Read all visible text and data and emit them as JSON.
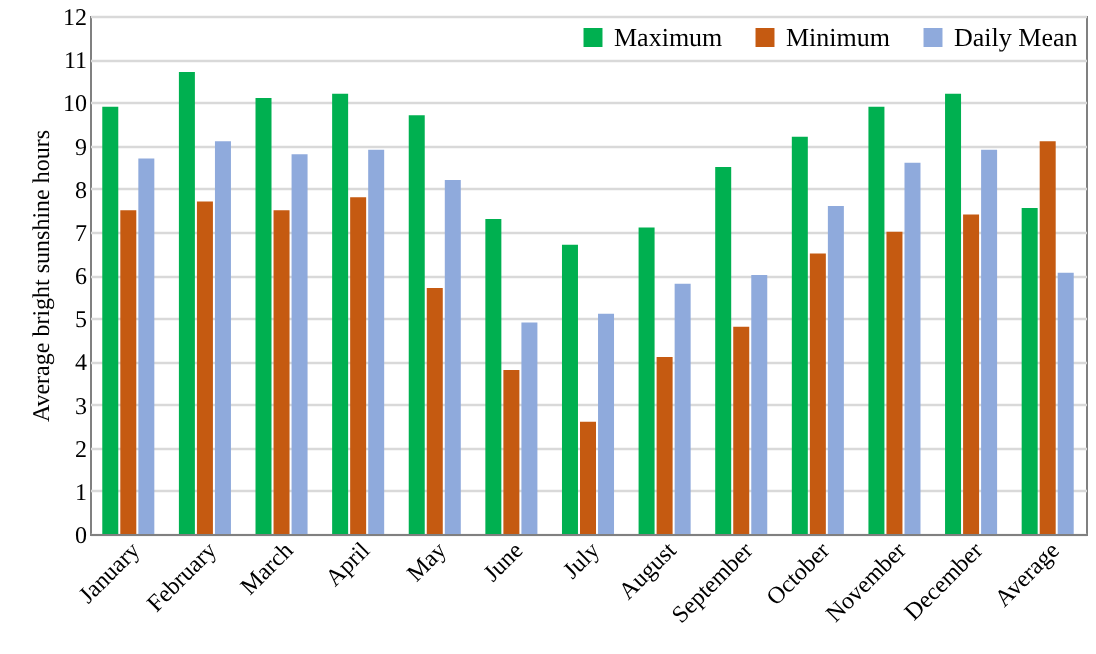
{
  "chart_data": {
    "type": "bar",
    "ylabel": "Average bright sunshine hours",
    "categories": [
      "January",
      "February",
      "March",
      "April",
      "May",
      "June",
      "July",
      "August",
      "September",
      "October",
      "November",
      "December",
      "Average"
    ],
    "series": [
      {
        "name": "Maximum",
        "color": "#00b050",
        "values": [
          9.9,
          10.7,
          10.1,
          10.2,
          9.7,
          7.3,
          6.7,
          7.1,
          8.5,
          9.2,
          9.9,
          10.2,
          7.55
        ]
      },
      {
        "name": "Minimum",
        "color": "#c55a11",
        "values": [
          7.5,
          7.7,
          7.5,
          7.8,
          5.7,
          3.8,
          2.6,
          4.1,
          4.8,
          6.5,
          7.0,
          7.4,
          9.1
        ]
      },
      {
        "name": "Daily Mean",
        "color": "#8faadc",
        "values": [
          8.7,
          9.1,
          8.8,
          8.9,
          8.2,
          4.9,
          5.1,
          5.8,
          6.0,
          7.6,
          8.6,
          8.9,
          6.05
        ]
      }
    ],
    "ylim": [
      0,
      12
    ],
    "yticks": [
      0,
      1,
      2,
      3,
      4,
      5,
      6,
      7,
      8,
      9,
      10,
      11,
      12
    ],
    "grid": "y",
    "legend": "top right"
  }
}
